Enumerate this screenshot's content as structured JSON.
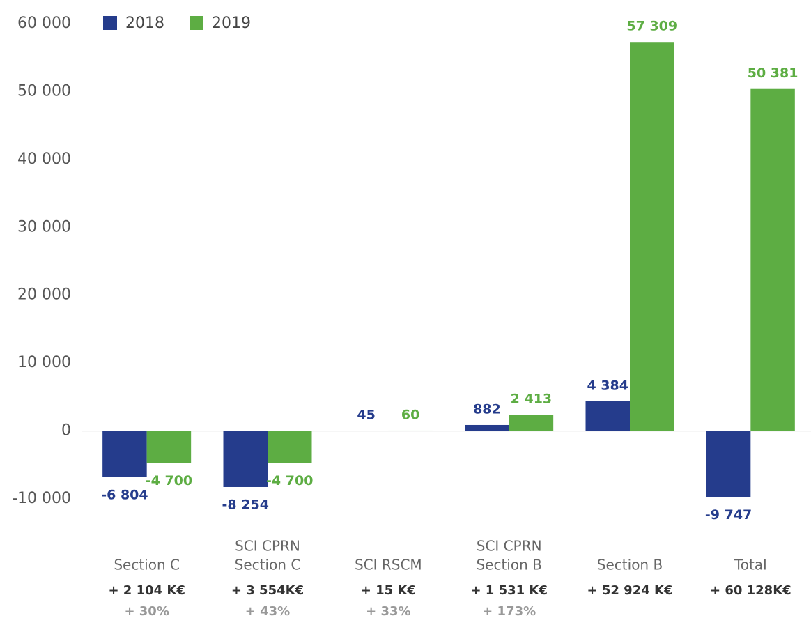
{
  "chart_data": {
    "type": "bar",
    "categories": [
      [
        "Section C"
      ],
      [
        "SCI CPRN",
        "Section C"
      ],
      [
        "SCI RSCM"
      ],
      [
        "SCI CPRN",
        "Section B"
      ],
      [
        "Section B"
      ],
      [
        "Total"
      ]
    ],
    "series": [
      {
        "name": "2018",
        "color": "#253c8c",
        "values": [
          -6804,
          -8254,
          45,
          882,
          4384,
          -9747
        ],
        "value_labels": [
          "-6 804",
          "-8 254",
          "45",
          "882",
          "4 384",
          "-9 747"
        ]
      },
      {
        "name": "2019",
        "color": "#5dad43",
        "values": [
          -4700,
          -4700,
          60,
          2413,
          57309,
          50381
        ],
        "value_labels": [
          "-4 700",
          "-4 700",
          "60",
          "2 413",
          "57 309",
          "50 381"
        ]
      }
    ],
    "changes": [
      "+ 2 104 K€",
      "+ 3 554K€",
      "+ 15 K€",
      "+ 1 531 K€",
      "+ 52 924 K€",
      "+ 60 128K€"
    ],
    "change_percents": [
      "+ 30%",
      "+ 43%",
      "+ 33%",
      "+ 173%",
      null,
      null
    ],
    "ylim": [
      -10000,
      60000
    ],
    "yticks": [
      {
        "value": -10000,
        "label": "-10 000"
      },
      0,
      {
        "value": 10000,
        "label": "10 000"
      },
      {
        "value": 20000,
        "label": "20 000"
      },
      {
        "value": 30000,
        "label": "30 000"
      },
      {
        "value": 40000,
        "label": "40 000"
      },
      {
        "value": 50000,
        "label": "50 000"
      },
      {
        "value": 60000,
        "label": "60 000"
      }
    ],
    "grid": false,
    "legend": "top-left"
  }
}
